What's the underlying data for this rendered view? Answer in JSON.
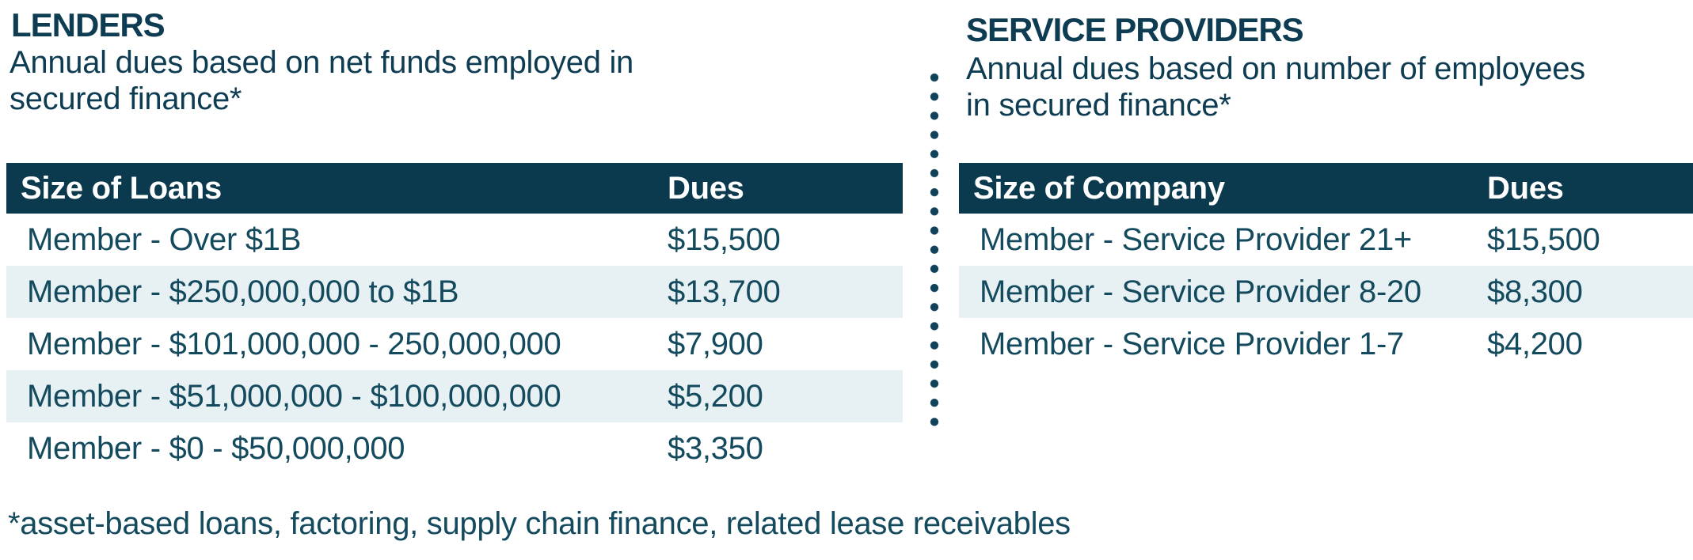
{
  "colors": {
    "header_bg": "#0b3a4e",
    "title_text": "#0e3c52",
    "body_text": "#144a5e",
    "alt_row_bg": "#e7f0f2",
    "header_text": "#ffffff",
    "divider_dot": "#10425a"
  },
  "lenders": {
    "title": "LENDERS",
    "subtitle_line1": "Annual dues based on net funds employed in",
    "subtitle_line2": "secured finance*",
    "table": {
      "columns": [
        "Size of Loans",
        "Dues"
      ],
      "rows": [
        {
          "label": "Member - Over $1B",
          "dues": "$15,500"
        },
        {
          "label": "Member - $250,000,000 to $1B",
          "dues": "$13,700"
        },
        {
          "label": "Member - $101,000,000 - 250,000,000",
          "dues": "$7,900"
        },
        {
          "label": "Member - $51,000,000 - $100,000,000",
          "dues": "$5,200"
        },
        {
          "label": "Member - $0 - $50,000,000",
          "dues": "$3,350"
        }
      ]
    }
  },
  "service_providers": {
    "title": "SERVICE PROVIDERS",
    "subtitle_line1": "Annual dues based on number of employees",
    "subtitle_line2": "in secured finance*",
    "table": {
      "columns": [
        "Size of Company",
        "Dues"
      ],
      "rows": [
        {
          "label": "Member - Service Provider 21+",
          "dues": "$15,500"
        },
        {
          "label": "Member - Service Provider 8-20",
          "dues": "$8,300"
        },
        {
          "label": "Member - Service Provider 1-7",
          "dues": "$4,200"
        }
      ]
    }
  },
  "footnote": "*asset-based loans, factoring, supply chain finance, related lease receivables"
}
